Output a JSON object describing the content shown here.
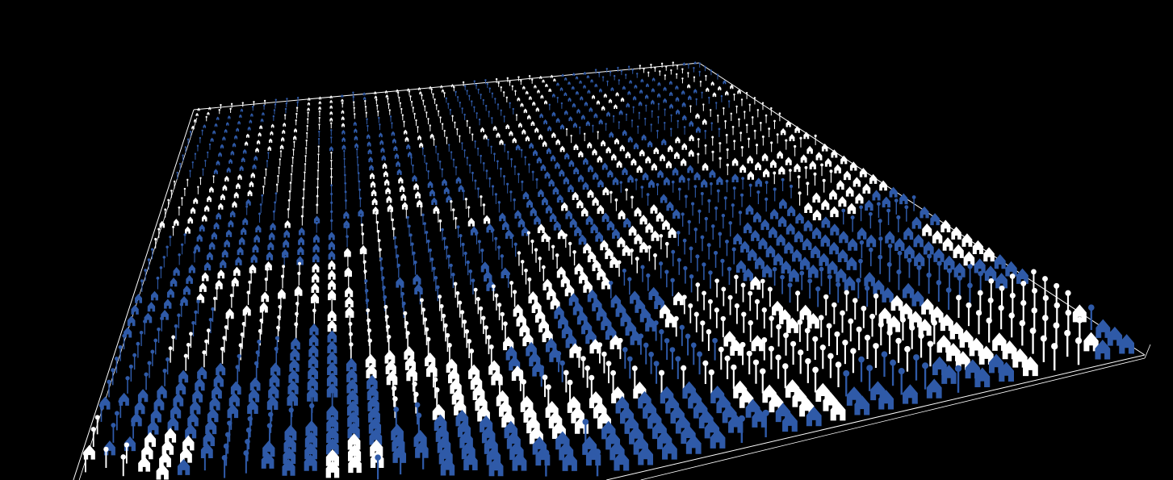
{
  "world": {
    "background_color": "#000000",
    "frame_color": "#ffffff",
    "groups": [
      {
        "color": "#2f5aa8",
        "shape": "house"
      },
      {
        "color": "#ffffff",
        "shape": "house"
      }
    ],
    "marker_shape": "pin"
  }
}
